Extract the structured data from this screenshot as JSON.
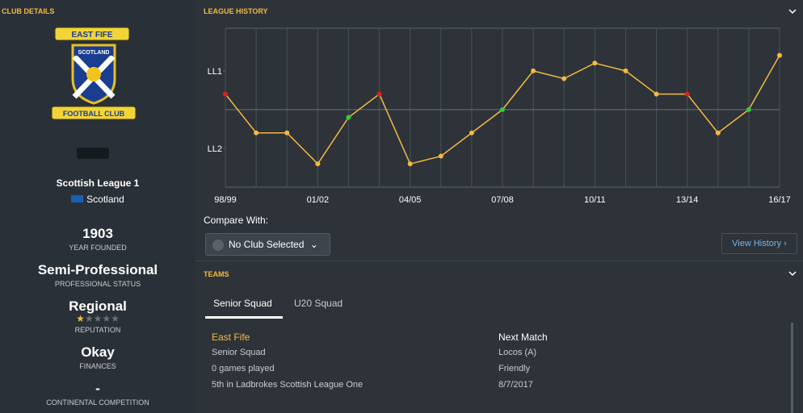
{
  "club_details": {
    "title": "CLUB DETAILS",
    "logo": {
      "top": "EAST FIFE",
      "middle": "SCOTLAND",
      "bottom": "FOOTBALL CLUB"
    },
    "league": "Scottish League 1",
    "nation": "Scotland",
    "year_founded": {
      "value": 1903,
      "label": "YEAR FOUNDED"
    },
    "status": {
      "value": "Semi-Professional",
      "label": "PROFESSIONAL STATUS"
    },
    "reputation": {
      "value": "Regional",
      "label": "REPUTATION",
      "stars": 1,
      "stars_max": 5
    },
    "finances": {
      "value": "Okay",
      "label": "FINANCES"
    },
    "continental": {
      "value": "-",
      "label": "CONTINENTAL COMPETITION"
    }
  },
  "league_history": {
    "title": "LEAGUE HISTORY",
    "compare_label": "Compare With:",
    "compare_select": "No Club Selected",
    "view_history": "View History"
  },
  "chart_data": {
    "type": "line",
    "categories": [
      "98/99",
      null,
      null,
      "01/02",
      null,
      null,
      "04/05",
      null,
      null,
      "07/08",
      null,
      null,
      "10/11",
      null,
      null,
      "13/14",
      null,
      null,
      "16/17"
    ],
    "series": [
      {
        "name": "East Fife",
        "color": "#f5b942",
        "values": [
          8,
          13,
          13,
          17,
          11,
          8,
          17,
          16,
          13,
          10,
          5,
          6,
          4,
          5,
          8,
          8,
          13,
          10,
          3
        ],
        "marker_colors": [
          "#e0201b",
          "#f5b942",
          "#f5b942",
          "#f5b942",
          "#2ecc40",
          "#e0201b",
          "#f5b942",
          "#f5b942",
          "#f5b942",
          "#2ecc40",
          "#f5b942",
          "#f5b942",
          "#f5b942",
          "#f5b942",
          "#f5b942",
          "#e0201b",
          "#f5b942",
          "#2ecc40",
          "#f5b942"
        ]
      }
    ],
    "ylim": [
      20,
      -0.5
    ],
    "yticks": [
      {
        "value": 5,
        "label": "LL1"
      },
      {
        "value": 15,
        "label": "LL2"
      }
    ],
    "reference_line": 10,
    "grid": true
  },
  "teams": {
    "title": "TEAMS",
    "tabs": [
      "Senior Squad",
      "U20 Squad"
    ],
    "club": "East Fife",
    "details": [
      "Senior Squad",
      "0 games played",
      "5th in Ladbrokes Scottish League One"
    ],
    "next_match": {
      "title": "Next Match",
      "lines": [
        "Locos (A)",
        "Friendly",
        "8/7/2017"
      ]
    }
  }
}
